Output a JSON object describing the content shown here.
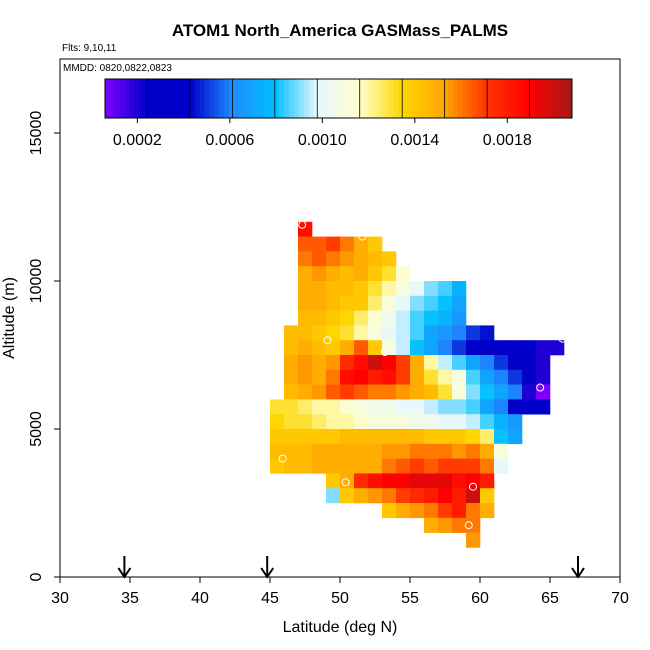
{
  "chart_data": {
    "type": "heatmap",
    "title": "ATOM1 North_America GASMass_PALMS",
    "xlabel": "Latitude (deg N)",
    "ylabel": "Altitude (m)",
    "flights_label": "Flts: 9,10,11",
    "mmdd_label": "MMDD: 0820,0822,0823",
    "xlim": [
      30,
      70
    ],
    "ylim": [
      0,
      17500
    ],
    "x_ticks": [
      30,
      35,
      40,
      45,
      50,
      55,
      60,
      65,
      70
    ],
    "y_ticks": [
      0,
      5000,
      10000,
      15000
    ],
    "grid": false,
    "colorbar": {
      "range": [
        6e-05,
        0.00208
      ],
      "tick_values": [
        0.0002,
        0.0006,
        0.001,
        0.0014,
        0.0018
      ],
      "tick_labels": [
        "0.0002",
        "0.0006",
        "0.0010",
        "0.0014",
        "0.0018"
      ],
      "palette": [
        "#8000ff",
        "#0000c8",
        "#0000c8",
        "#1e8cff",
        "#00bfff",
        "#e6f7ff",
        "#ffffcc",
        "#ffd700",
        "#ffa500",
        "#ff3300",
        "#ff0000",
        "#a51919"
      ]
    },
    "cell_size": {
      "lat": 1,
      "alt": 500
    },
    "cells_note": "each row: [altitude_bin_bottom_m, first_lat, [values...]]",
    "rows": [
      [
        11500,
        47,
        [
          0.00185
        ]
      ],
      [
        11000,
        47,
        [
          0.00165,
          0.00165,
          0.0017,
          0.0016,
          0.0015,
          0.0014
        ]
      ],
      [
        10500,
        47,
        [
          0.0016,
          0.00165,
          0.0016,
          0.00155,
          0.0015,
          0.00145,
          0.0014
        ]
      ],
      [
        10000,
        47,
        [
          0.0015,
          0.00155,
          0.0015,
          0.00145,
          0.0015,
          0.0014,
          0.0013,
          0.00115
        ]
      ],
      [
        9500,
        47,
        [
          0.0015,
          0.0015,
          0.00145,
          0.00145,
          0.0014,
          0.0013,
          0.0012,
          0.0011,
          0.001,
          0.0009,
          0.00085,
          0.00075
        ]
      ],
      [
        9000,
        47,
        [
          0.0015,
          0.0015,
          0.00145,
          0.0014,
          0.0014,
          0.00125,
          0.0011,
          0.001,
          0.0009,
          0.00085,
          0.0008,
          0.0007
        ]
      ],
      [
        8500,
        47,
        [
          0.00145,
          0.00145,
          0.0014,
          0.00135,
          0.00125,
          0.00115,
          0.00105,
          0.00095,
          0.00085,
          0.0008,
          0.00075,
          0.00065
        ]
      ],
      [
        8000,
        46,
        [
          0.00145,
          0.00145,
          0.0014,
          0.00135,
          0.0013,
          0.0012,
          0.0011,
          0.001,
          0.00095,
          0.00085,
          0.0007,
          0.00065,
          0.0006,
          0.0005,
          0.00045
        ]
      ],
      [
        7500,
        46,
        [
          0.00145,
          0.0015,
          0.00145,
          0.0014,
          0.0015,
          0.00165,
          0.0014,
          0.0011,
          0.00095,
          0.0008,
          0.0007,
          0.0006,
          0.0005,
          0.0003,
          0.0003,
          0.00025,
          0.00025,
          0.00025,
          0.0002,
          0.0002
        ]
      ],
      [
        7000,
        46,
        [
          0.0015,
          0.00155,
          0.0015,
          0.00155,
          0.00175,
          0.00185,
          0.002,
          0.0019,
          0.0017,
          0.0015,
          0.0012,
          0.00095,
          0.00085,
          0.0007,
          0.0006,
          0.0005,
          0.0003,
          0.00025,
          0.0002
        ]
      ],
      [
        6500,
        46,
        [
          0.0015,
          0.00155,
          0.0015,
          0.0016,
          0.00185,
          0.0019,
          0.0018,
          0.00185,
          0.0017,
          0.0015,
          0.0013,
          0.0012,
          0.0011,
          0.00085,
          0.0007,
          0.0006,
          0.0005,
          0.0003,
          0.0002
        ]
      ],
      [
        6000,
        46,
        [
          0.00145,
          0.0015,
          0.00155,
          0.00165,
          0.0017,
          0.00165,
          0.0016,
          0.0016,
          0.00155,
          0.0015,
          0.00145,
          0.0013,
          0.0011,
          0.0009,
          0.0008,
          0.0007,
          0.0006,
          0.0002,
          5e-05
        ]
      ],
      [
        5500,
        45,
        [
          0.0013,
          0.0013,
          0.00125,
          0.0012,
          0.0012,
          0.00115,
          0.0011,
          0.00105,
          0.00105,
          0.001,
          0.001,
          0.00095,
          0.0009,
          0.0009,
          0.00085,
          0.0007,
          0.0006,
          0.0004,
          0.00035,
          0.0003
        ]
      ],
      [
        5000,
        45,
        [
          0.00135,
          0.0013,
          0.0013,
          0.00125,
          0.0012,
          0.0012,
          0.00115,
          0.0011,
          0.0011,
          0.0011,
          0.00105,
          0.00105,
          0.001,
          0.001,
          0.00095,
          0.00085,
          0.00075,
          0.00065
        ]
      ],
      [
        4500,
        45,
        [
          0.0014,
          0.0014,
          0.0014,
          0.0014,
          0.0014,
          0.00145,
          0.00145,
          0.00145,
          0.00145,
          0.00145,
          0.00145,
          0.0014,
          0.0014,
          0.0014,
          0.00135,
          0.00125,
          0.0008,
          0.0007
        ]
      ],
      [
        4000,
        45,
        [
          0.00145,
          0.00145,
          0.00145,
          0.0015,
          0.0015,
          0.0015,
          0.0015,
          0.0015,
          0.00155,
          0.00155,
          0.0016,
          0.0016,
          0.0016,
          0.00155,
          0.0016,
          0.0015,
          0.0011
        ]
      ],
      [
        3500,
        45,
        [
          0.0014,
          0.00145,
          0.00145,
          0.0015,
          0.0015,
          0.0015,
          0.0015,
          0.0015,
          0.0016,
          0.00165,
          0.0017,
          0.00165,
          0.0017,
          0.0017,
          0.0017,
          0.0016,
          0.001
        ]
      ],
      [
        3000,
        49,
        [
          0.0014,
          0.0015,
          0.00175,
          0.00185,
          0.0019,
          0.0019,
          0.00195,
          0.00195,
          0.00195,
          0.00185,
          0.0019,
          0.0018
        ]
      ],
      [
        2500,
        49,
        [
          0.0009,
          0.0014,
          0.0015,
          0.00155,
          0.0016,
          0.0017,
          0.00175,
          0.0018,
          0.0019,
          0.0018,
          0.002,
          0.0014
        ]
      ],
      [
        2000,
        53,
        [
          0.0014,
          0.0015,
          0.00155,
          0.0016,
          0.0017,
          0.0018,
          0.0016,
          0.0015
        ]
      ],
      [
        1500,
        56,
        [
          0.0015,
          0.00155,
          0.0016,
          0.0016
        ]
      ],
      [
        1000,
        59,
        [
          0.00155
        ]
      ]
    ],
    "flight_points": [
      [
        47.3,
        11900
      ],
      [
        51.6,
        11500
      ],
      [
        49.1,
        8000
      ],
      [
        53.2,
        7600
      ],
      [
        58.3,
        6500
      ],
      [
        64.3,
        6400
      ],
      [
        65.9,
        8050
      ],
      [
        59.5,
        3050
      ],
      [
        50.4,
        3200
      ],
      [
        45.9,
        4000
      ],
      [
        59.2,
        1750
      ],
      [
        44.8,
        6350
      ]
    ],
    "arrows_lat": [
      34.6,
      44.8,
      67.0
    ]
  }
}
